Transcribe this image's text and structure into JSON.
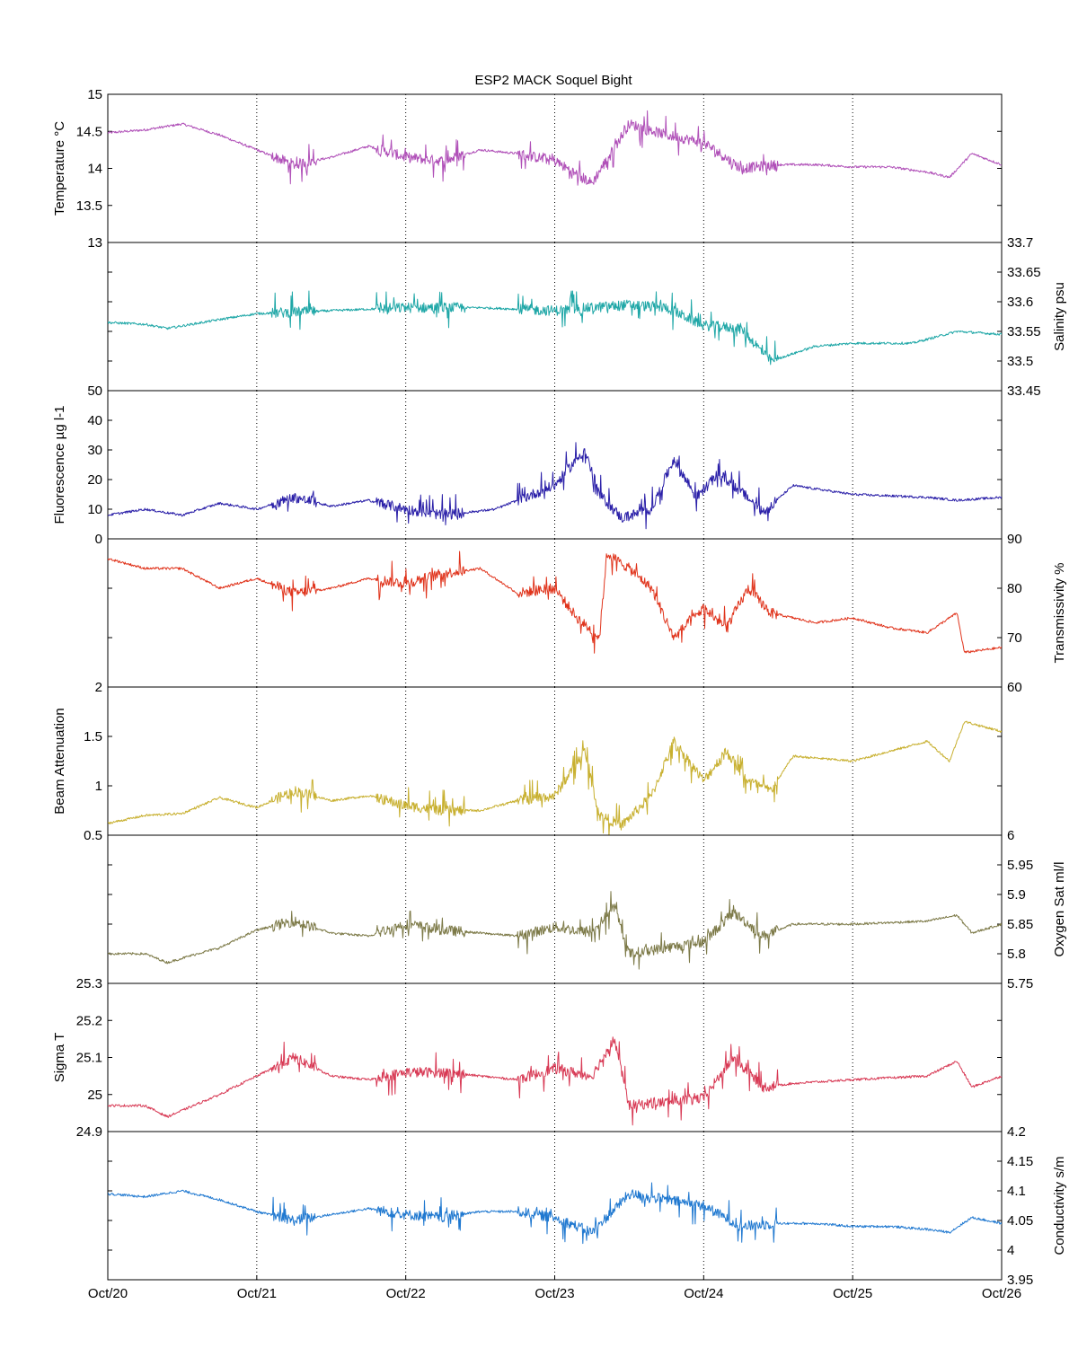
{
  "chart_data": {
    "type": "line",
    "title": "ESP2 MACK  Soquel Bight",
    "x_ticks": [
      "Oct/20",
      "Oct/21",
      "Oct/22",
      "Oct/23",
      "Oct/24",
      "Oct/25",
      "Oct/26"
    ],
    "x_range_days": [
      0,
      6
    ],
    "grid": "vertical-dotted",
    "panels": [
      {
        "id": "temperature",
        "ylabel": "Temperature °C",
        "ylabel_side": "left",
        "ylim": [
          13,
          15
        ],
        "yticks": [
          13,
          13.5,
          14,
          14.5,
          15
        ],
        "ytick_labels": [
          "13",
          "13.5",
          "14",
          "14.5",
          "15"
        ],
        "color": "#b050b8",
        "series": [
          {
            "t": 0.0,
            "v": 14.48
          },
          {
            "t": 0.25,
            "v": 14.52
          },
          {
            "t": 0.5,
            "v": 14.6
          },
          {
            "t": 0.75,
            "v": 14.45
          },
          {
            "t": 1.0,
            "v": 14.25
          },
          {
            "t": 1.25,
            "v": 14.05
          },
          {
            "t": 1.5,
            "v": 14.15
          },
          {
            "t": 1.75,
            "v": 14.3
          },
          {
            "t": 2.0,
            "v": 14.15
          },
          {
            "t": 2.25,
            "v": 14.1
          },
          {
            "t": 2.5,
            "v": 14.25
          },
          {
            "t": 2.75,
            "v": 14.2
          },
          {
            "t": 3.0,
            "v": 14.1
          },
          {
            "t": 3.25,
            "v": 13.8
          },
          {
            "t": 3.5,
            "v": 14.6
          },
          {
            "t": 3.75,
            "v": 14.45
          },
          {
            "t": 4.0,
            "v": 14.35
          },
          {
            "t": 4.25,
            "v": 14.0
          },
          {
            "t": 4.5,
            "v": 14.05
          },
          {
            "t": 4.75,
            "v": 14.05
          },
          {
            "t": 5.0,
            "v": 14.02
          },
          {
            "t": 5.25,
            "v": 14.02
          },
          {
            "t": 5.5,
            "v": 13.95
          },
          {
            "t": 5.65,
            "v": 13.88
          },
          {
            "t": 5.8,
            "v": 14.2
          },
          {
            "t": 6.0,
            "v": 14.05
          }
        ]
      },
      {
        "id": "salinity",
        "ylabel": "Salinity psu",
        "ylabel_side": "right",
        "ylim": [
          33.45,
          33.7
        ],
        "yticks": [
          33.45,
          33.5,
          33.55,
          33.6,
          33.65,
          33.7
        ],
        "ytick_labels": [
          "33.45",
          "33.5",
          "33.55",
          "33.6",
          "33.65",
          "33.7"
        ],
        "color": "#1fa7a7",
        "series": [
          {
            "t": 0.0,
            "v": 33.565
          },
          {
            "t": 0.25,
            "v": 33.562
          },
          {
            "t": 0.4,
            "v": 33.555
          },
          {
            "t": 0.75,
            "v": 33.57
          },
          {
            "t": 1.0,
            "v": 33.58
          },
          {
            "t": 1.5,
            "v": 33.585
          },
          {
            "t": 2.0,
            "v": 33.59
          },
          {
            "t": 2.5,
            "v": 33.59
          },
          {
            "t": 3.0,
            "v": 33.585
          },
          {
            "t": 3.5,
            "v": 33.595
          },
          {
            "t": 3.75,
            "v": 33.59
          },
          {
            "t": 4.0,
            "v": 33.56
          },
          {
            "t": 4.25,
            "v": 33.555
          },
          {
            "t": 4.45,
            "v": 33.5
          },
          {
            "t": 4.75,
            "v": 33.525
          },
          {
            "t": 5.0,
            "v": 33.53
          },
          {
            "t": 5.4,
            "v": 33.53
          },
          {
            "t": 5.7,
            "v": 33.55
          },
          {
            "t": 6.0,
            "v": 33.545
          }
        ]
      },
      {
        "id": "fluorescence",
        "ylabel": "Fluorescence µg l-1",
        "ylabel_side": "left",
        "ylim": [
          0,
          50
        ],
        "yticks": [
          0,
          10,
          20,
          30,
          40,
          50
        ],
        "ytick_labels": [
          "0",
          "10",
          "20",
          "30",
          "40",
          "50"
        ],
        "color": "#2a1fa8",
        "series": [
          {
            "t": 0.0,
            "v": 8
          },
          {
            "t": 0.25,
            "v": 10
          },
          {
            "t": 0.5,
            "v": 8
          },
          {
            "t": 0.75,
            "v": 12
          },
          {
            "t": 1.0,
            "v": 10
          },
          {
            "t": 1.25,
            "v": 14
          },
          {
            "t": 1.5,
            "v": 11
          },
          {
            "t": 1.75,
            "v": 13
          },
          {
            "t": 2.0,
            "v": 10
          },
          {
            "t": 2.25,
            "v": 8
          },
          {
            "t": 2.6,
            "v": 10
          },
          {
            "t": 2.85,
            "v": 15
          },
          {
            "t": 3.0,
            "v": 18
          },
          {
            "t": 3.2,
            "v": 30
          },
          {
            "t": 3.3,
            "v": 15
          },
          {
            "t": 3.45,
            "v": 7
          },
          {
            "t": 3.65,
            "v": 10
          },
          {
            "t": 3.8,
            "v": 27
          },
          {
            "t": 3.95,
            "v": 14
          },
          {
            "t": 4.1,
            "v": 22
          },
          {
            "t": 4.25,
            "v": 16
          },
          {
            "t": 4.4,
            "v": 9
          },
          {
            "t": 4.6,
            "v": 18
          },
          {
            "t": 5.0,
            "v": 15
          },
          {
            "t": 5.5,
            "v": 14
          },
          {
            "t": 5.7,
            "v": 13
          },
          {
            "t": 6.0,
            "v": 14
          }
        ]
      },
      {
        "id": "transmissivity",
        "ylabel": "Transmissivity %",
        "ylabel_side": "right",
        "ylim": [
          60,
          90
        ],
        "yticks": [
          60,
          70,
          80,
          90
        ],
        "ytick_labels": [
          "60",
          "70",
          "80",
          "90"
        ],
        "color": "#e0341c",
        "series": [
          {
            "t": 0.0,
            "v": 86
          },
          {
            "t": 0.25,
            "v": 84
          },
          {
            "t": 0.5,
            "v": 84
          },
          {
            "t": 0.75,
            "v": 80
          },
          {
            "t": 1.0,
            "v": 82
          },
          {
            "t": 1.25,
            "v": 79
          },
          {
            "t": 1.5,
            "v": 80
          },
          {
            "t": 1.75,
            "v": 82
          },
          {
            "t": 2.0,
            "v": 81
          },
          {
            "t": 2.25,
            "v": 83
          },
          {
            "t": 2.5,
            "v": 84
          },
          {
            "t": 2.75,
            "v": 79
          },
          {
            "t": 3.0,
            "v": 80
          },
          {
            "t": 3.15,
            "v": 74
          },
          {
            "t": 3.3,
            "v": 70
          },
          {
            "t": 3.35,
            "v": 87
          },
          {
            "t": 3.5,
            "v": 84
          },
          {
            "t": 3.65,
            "v": 80
          },
          {
            "t": 3.8,
            "v": 70
          },
          {
            "t": 4.0,
            "v": 76
          },
          {
            "t": 4.15,
            "v": 72
          },
          {
            "t": 4.3,
            "v": 80
          },
          {
            "t": 4.45,
            "v": 75
          },
          {
            "t": 4.75,
            "v": 73
          },
          {
            "t": 5.0,
            "v": 74
          },
          {
            "t": 5.25,
            "v": 72
          },
          {
            "t": 5.5,
            "v": 71
          },
          {
            "t": 5.7,
            "v": 75
          },
          {
            "t": 5.75,
            "v": 67
          },
          {
            "t": 6.0,
            "v": 68
          }
        ]
      },
      {
        "id": "beam_attenuation",
        "ylabel": "Beam Attenuation",
        "ylabel_side": "left",
        "ylim": [
          0.5,
          2
        ],
        "yticks": [
          0.5,
          1,
          1.5,
          2
        ],
        "ytick_labels": [
          "0.5",
          "1",
          "1.5",
          "2"
        ],
        "color": "#c8b030",
        "series": [
          {
            "t": 0.0,
            "v": 0.62
          },
          {
            "t": 0.25,
            "v": 0.7
          },
          {
            "t": 0.5,
            "v": 0.72
          },
          {
            "t": 0.75,
            "v": 0.88
          },
          {
            "t": 1.0,
            "v": 0.78
          },
          {
            "t": 1.25,
            "v": 0.95
          },
          {
            "t": 1.5,
            "v": 0.85
          },
          {
            "t": 1.75,
            "v": 0.9
          },
          {
            "t": 2.0,
            "v": 0.8
          },
          {
            "t": 2.25,
            "v": 0.75
          },
          {
            "t": 2.5,
            "v": 0.75
          },
          {
            "t": 2.75,
            "v": 0.85
          },
          {
            "t": 3.0,
            "v": 0.9
          },
          {
            "t": 3.2,
            "v": 1.35
          },
          {
            "t": 3.3,
            "v": 0.7
          },
          {
            "t": 3.45,
            "v": 0.6
          },
          {
            "t": 3.65,
            "v": 0.9
          },
          {
            "t": 3.8,
            "v": 1.45
          },
          {
            "t": 4.0,
            "v": 1.05
          },
          {
            "t": 4.15,
            "v": 1.35
          },
          {
            "t": 4.3,
            "v": 1.05
          },
          {
            "t": 4.45,
            "v": 0.95
          },
          {
            "t": 4.6,
            "v": 1.3
          },
          {
            "t": 5.0,
            "v": 1.25
          },
          {
            "t": 5.25,
            "v": 1.35
          },
          {
            "t": 5.5,
            "v": 1.45
          },
          {
            "t": 5.65,
            "v": 1.25
          },
          {
            "t": 5.75,
            "v": 1.65
          },
          {
            "t": 6.0,
            "v": 1.55
          }
        ]
      },
      {
        "id": "oxygen",
        "ylabel": "Oxygen Sat ml/l",
        "ylabel_side": "right",
        "ylim": [
          5.75,
          6
        ],
        "yticks": [
          5.75,
          5.8,
          5.85,
          5.9,
          5.95,
          6
        ],
        "ytick_labels": [
          "5.75",
          "5.8",
          "5.85",
          "5.9",
          "5.95",
          "6"
        ],
        "color": "#7d7a48",
        "series": [
          {
            "t": 0.0,
            "v": 5.8
          },
          {
            "t": 0.25,
            "v": 5.8
          },
          {
            "t": 0.4,
            "v": 5.785
          },
          {
            "t": 0.6,
            "v": 5.8
          },
          {
            "t": 0.75,
            "v": 5.81
          },
          {
            "t": 1.0,
            "v": 5.84
          },
          {
            "t": 1.25,
            "v": 5.855
          },
          {
            "t": 1.5,
            "v": 5.835
          },
          {
            "t": 1.75,
            "v": 5.83
          },
          {
            "t": 2.0,
            "v": 5.85
          },
          {
            "t": 2.25,
            "v": 5.84
          },
          {
            "t": 2.5,
            "v": 5.835
          },
          {
            "t": 2.75,
            "v": 5.83
          },
          {
            "t": 3.0,
            "v": 5.845
          },
          {
            "t": 3.25,
            "v": 5.835
          },
          {
            "t": 3.4,
            "v": 5.88
          },
          {
            "t": 3.5,
            "v": 5.8
          },
          {
            "t": 3.75,
            "v": 5.81
          },
          {
            "t": 4.0,
            "v": 5.82
          },
          {
            "t": 4.2,
            "v": 5.87
          },
          {
            "t": 4.4,
            "v": 5.83
          },
          {
            "t": 4.6,
            "v": 5.85
          },
          {
            "t": 5.0,
            "v": 5.85
          },
          {
            "t": 5.5,
            "v": 5.855
          },
          {
            "t": 5.7,
            "v": 5.865
          },
          {
            "t": 5.8,
            "v": 5.835
          },
          {
            "t": 6.0,
            "v": 5.85
          }
        ]
      },
      {
        "id": "sigma_t",
        "ylabel": "Sigma T",
        "ylabel_side": "left",
        "ylim": [
          24.9,
          25.3
        ],
        "yticks": [
          24.9,
          25,
          25.1,
          25.2,
          25.3
        ],
        "ytick_labels": [
          "24.9",
          "25",
          "25.1",
          "25.2",
          "25.3"
        ],
        "color": "#d83a55",
        "series": [
          {
            "t": 0.0,
            "v": 24.97
          },
          {
            "t": 0.25,
            "v": 24.97
          },
          {
            "t": 0.4,
            "v": 24.94
          },
          {
            "t": 0.75,
            "v": 25.0
          },
          {
            "t": 1.0,
            "v": 25.05
          },
          {
            "t": 1.25,
            "v": 25.1
          },
          {
            "t": 1.5,
            "v": 25.05
          },
          {
            "t": 1.75,
            "v": 25.04
          },
          {
            "t": 2.0,
            "v": 25.06
          },
          {
            "t": 2.25,
            "v": 25.06
          },
          {
            "t": 2.5,
            "v": 25.05
          },
          {
            "t": 2.75,
            "v": 25.04
          },
          {
            "t": 3.0,
            "v": 25.07
          },
          {
            "t": 3.25,
            "v": 25.05
          },
          {
            "t": 3.4,
            "v": 25.15
          },
          {
            "t": 3.5,
            "v": 24.97
          },
          {
            "t": 3.75,
            "v": 24.98
          },
          {
            "t": 4.0,
            "v": 24.99
          },
          {
            "t": 4.2,
            "v": 25.1
          },
          {
            "t": 4.4,
            "v": 25.02
          },
          {
            "t": 4.6,
            "v": 25.03
          },
          {
            "t": 5.0,
            "v": 25.04
          },
          {
            "t": 5.5,
            "v": 25.05
          },
          {
            "t": 5.7,
            "v": 25.09
          },
          {
            "t": 5.8,
            "v": 25.02
          },
          {
            "t": 6.0,
            "v": 25.05
          }
        ]
      },
      {
        "id": "conductivity",
        "ylabel": "Conductivity s/m",
        "ylabel_side": "right",
        "ylim": [
          3.95,
          4.2
        ],
        "yticks": [
          3.95,
          4,
          4.05,
          4.1,
          4.15,
          4.2
        ],
        "ytick_labels": [
          "3.95",
          "4",
          "4.05",
          "4.1",
          "4.15",
          "4.2"
        ],
        "color": "#1f78d0",
        "series": [
          {
            "t": 0.0,
            "v": 4.095
          },
          {
            "t": 0.25,
            "v": 4.09
          },
          {
            "t": 0.5,
            "v": 4.1
          },
          {
            "t": 0.75,
            "v": 4.085
          },
          {
            "t": 1.0,
            "v": 4.065
          },
          {
            "t": 1.25,
            "v": 4.05
          },
          {
            "t": 1.5,
            "v": 4.06
          },
          {
            "t": 1.75,
            "v": 4.07
          },
          {
            "t": 2.0,
            "v": 4.06
          },
          {
            "t": 2.25,
            "v": 4.055
          },
          {
            "t": 2.5,
            "v": 4.065
          },
          {
            "t": 2.75,
            "v": 4.065
          },
          {
            "t": 3.0,
            "v": 4.055
          },
          {
            "t": 3.25,
            "v": 4.03
          },
          {
            "t": 3.5,
            "v": 4.095
          },
          {
            "t": 3.75,
            "v": 4.085
          },
          {
            "t": 4.0,
            "v": 4.075
          },
          {
            "t": 4.25,
            "v": 4.04
          },
          {
            "t": 4.5,
            "v": 4.045
          },
          {
            "t": 4.75,
            "v": 4.045
          },
          {
            "t": 5.0,
            "v": 4.04
          },
          {
            "t": 5.25,
            "v": 4.04
          },
          {
            "t": 5.5,
            "v": 4.035
          },
          {
            "t": 5.65,
            "v": 4.03
          },
          {
            "t": 5.8,
            "v": 4.055
          },
          {
            "t": 6.0,
            "v": 4.045
          }
        ]
      }
    ]
  }
}
